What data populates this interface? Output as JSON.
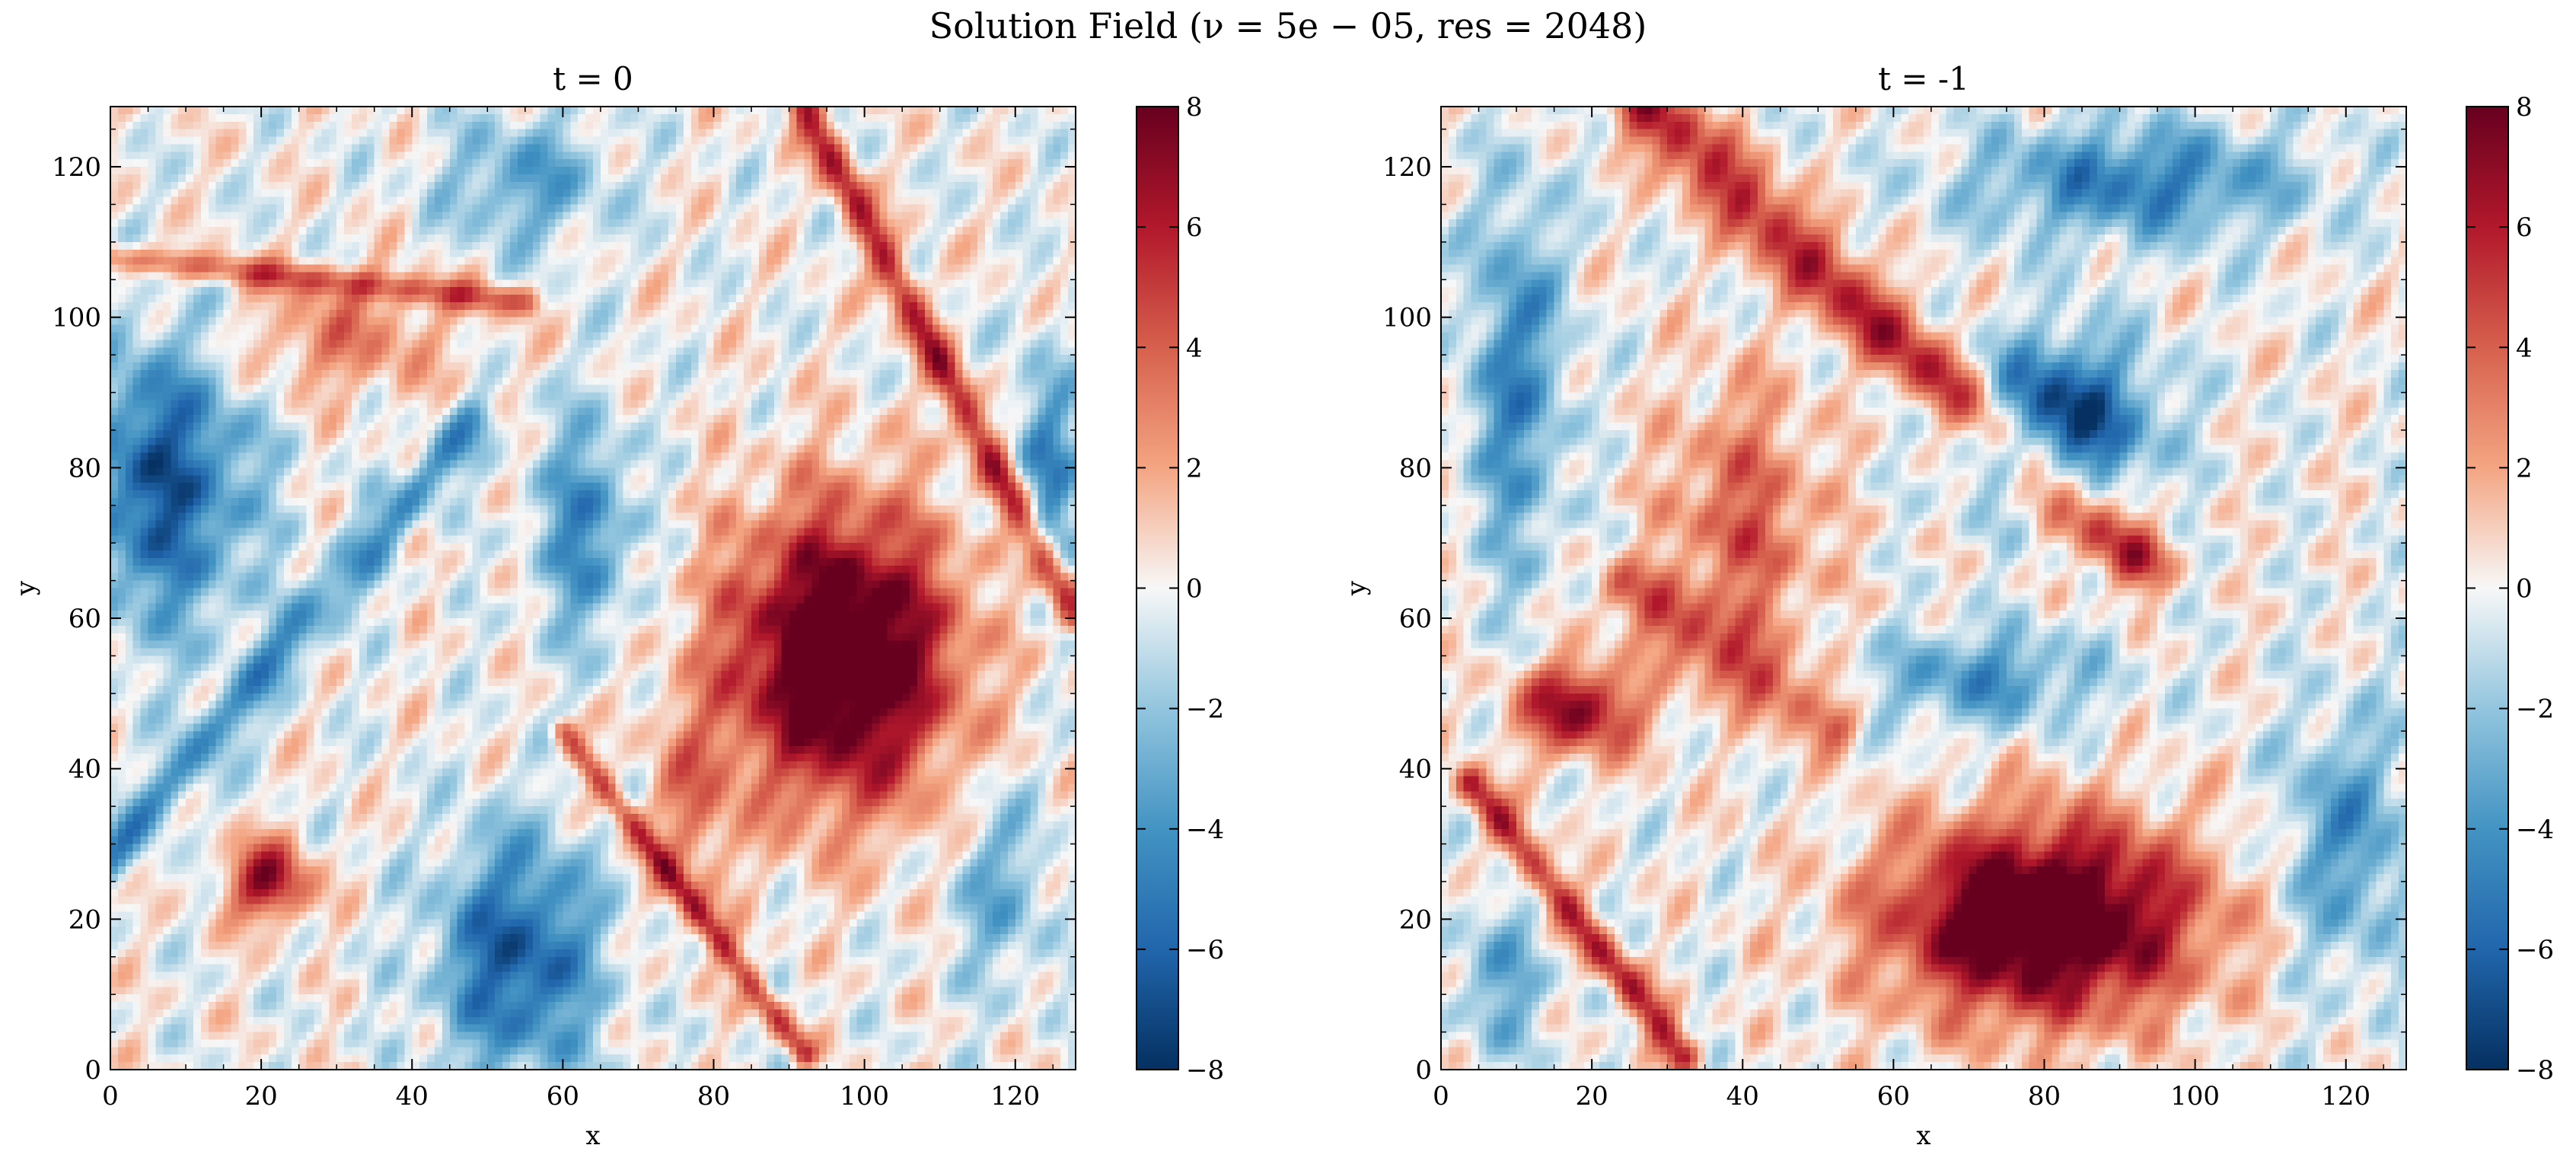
{
  "figure": {
    "suptitle": "Solution Field (ν = 5e − 05, res = 2048)"
  },
  "chart_data": [
    {
      "type": "heatmap",
      "title": "t = 0",
      "xlabel": "x",
      "ylabel": "y",
      "xlim": [
        0,
        128
      ],
      "ylim": [
        0,
        128
      ],
      "xticks": [
        0,
        20,
        40,
        60,
        80,
        100,
        120
      ],
      "yticks": [
        0,
        20,
        40,
        60,
        80,
        100,
        120
      ],
      "colormap": "RdBu_r",
      "vmin": -8,
      "vmax": 8,
      "colorbar_ticks": [
        "8",
        "6",
        "4",
        "2",
        "0",
        "−2",
        "−4",
        "−6",
        "−8"
      ],
      "vortices": [
        {
          "x": 97,
          "y": 55,
          "rx": 14,
          "ry": 18,
          "amp": 11,
          "sign": 1
        },
        {
          "x": 7,
          "y": 78,
          "rx": 11,
          "ry": 18,
          "amp": -6.5,
          "sign": -1
        },
        {
          "x": 54,
          "y": 15,
          "rx": 10,
          "ry": 15,
          "amp": -6.5,
          "sign": -1
        },
        {
          "x": 21,
          "y": 25,
          "rx": 5,
          "ry": 5,
          "amp": 7,
          "sign": 1
        },
        {
          "x": 63,
          "y": 72,
          "rx": 6,
          "ry": 14,
          "amp": -4.5,
          "sign": -1
        },
        {
          "x": 30,
          "y": 97,
          "rx": 14,
          "ry": 7,
          "amp": 3,
          "sign": 1
        },
        {
          "x": 55,
          "y": 118,
          "rx": 10,
          "ry": 8,
          "amp": -3.5,
          "sign": -1
        },
        {
          "x": 124,
          "y": 80,
          "rx": 4,
          "ry": 14,
          "amp": -4.5,
          "sign": -1
        },
        {
          "x": 118,
          "y": 24,
          "rx": 6,
          "ry": 12,
          "amp": -3,
          "sign": -1
        },
        {
          "x": 77,
          "y": 34,
          "rx": 5,
          "ry": 14,
          "amp": 3,
          "sign": 1
        }
      ],
      "filaments": [
        {
          "x0": 92,
          "y0": 128,
          "x1": 128,
          "y1": 60,
          "w": 1.6,
          "amp": 6
        },
        {
          "x0": 60,
          "y0": 45,
          "x1": 92,
          "y1": 2,
          "w": 1.2,
          "amp": 5
        },
        {
          "x0": 0,
          "y0": 28,
          "x1": 48,
          "y1": 86,
          "w": 2.2,
          "amp": -4
        },
        {
          "x0": 0,
          "y0": 108,
          "x1": 55,
          "y1": 102,
          "w": 1.4,
          "amp": 4
        }
      ]
    },
    {
      "type": "heatmap",
      "title": "t = -1",
      "xlabel": "x",
      "ylabel": "y",
      "xlim": [
        0,
        128
      ],
      "ylim": [
        0,
        128
      ],
      "xticks": [
        0,
        20,
        40,
        60,
        80,
        100,
        120
      ],
      "yticks": [
        0,
        20,
        40,
        60,
        80,
        100,
        120
      ],
      "colormap": "RdBu_r",
      "vmin": -8,
      "vmax": 8,
      "colorbar_ticks": [
        "8",
        "6",
        "4",
        "2",
        "0",
        "−2",
        "−4",
        "−6",
        "−8"
      ],
      "vortices": [
        {
          "x": 80,
          "y": 20,
          "rx": 19,
          "ry": 12,
          "amp": 11,
          "sign": 1
        },
        {
          "x": 82,
          "y": 86,
          "rx": 11,
          "ry": 10,
          "amp": -8,
          "sign": -1
        },
        {
          "x": 92,
          "y": 118,
          "rx": 20,
          "ry": 7,
          "amp": -5,
          "sign": -1
        },
        {
          "x": 18,
          "y": 48,
          "rx": 8,
          "ry": 6,
          "amp": 7,
          "sign": 1
        },
        {
          "x": 72,
          "y": 52,
          "rx": 14,
          "ry": 6,
          "amp": -4,
          "sign": -1
        },
        {
          "x": 10,
          "y": 92,
          "rx": 6,
          "ry": 24,
          "amp": -4.5,
          "sign": -1
        },
        {
          "x": 120,
          "y": 30,
          "rx": 8,
          "ry": 16,
          "amp": -4,
          "sign": -1
        },
        {
          "x": 8,
          "y": 12,
          "rx": 6,
          "ry": 10,
          "amp": -3,
          "sign": -1
        },
        {
          "x": 40,
          "y": 72,
          "rx": 10,
          "ry": 18,
          "amp": 4,
          "sign": 1
        }
      ],
      "filaments": [
        {
          "x0": 27,
          "y0": 128,
          "x1": 92,
          "y1": 68,
          "w": 3.2,
          "amp": 6
        },
        {
          "x0": 4,
          "y0": 38,
          "x1": 32,
          "y1": 2,
          "w": 1.6,
          "amp": 6
        },
        {
          "x0": 24,
          "y0": 64,
          "x1": 52,
          "y1": 46,
          "w": 2.5,
          "amp": 4
        }
      ]
    }
  ]
}
